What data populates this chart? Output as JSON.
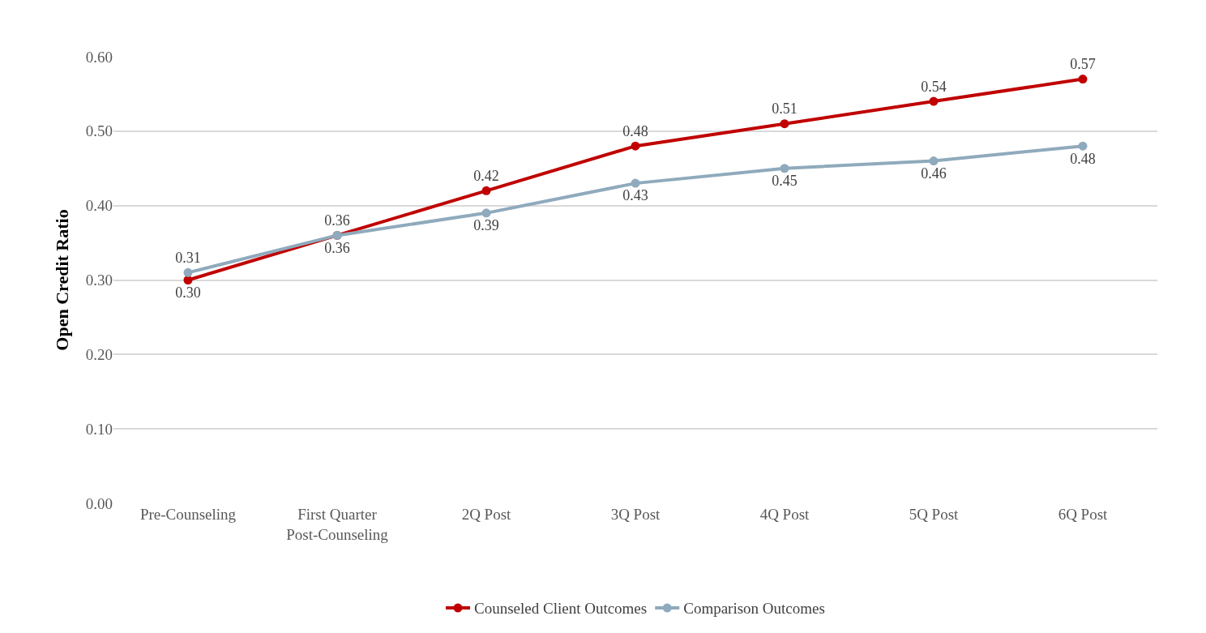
{
  "chart_data": {
    "type": "line",
    "ylabel": "Open Credit Ratio",
    "categories": [
      "Pre-Counseling",
      "First Quarter Post-Counseling",
      "2Q Post",
      "3Q Post",
      "4Q Post",
      "5Q Post",
      "6Q Post"
    ],
    "series": [
      {
        "name": "Counseled Client Outcomes",
        "color": "#c00000",
        "values": [
          0.3,
          0.36,
          0.42,
          0.48,
          0.51,
          0.54,
          0.57
        ],
        "value_labels": [
          "0.30",
          "0.36",
          "0.42",
          "0.48",
          "0.51",
          "0.54",
          "0.57"
        ]
      },
      {
        "name": "Comparison Outcomes",
        "color": "#8faabc",
        "values": [
          0.31,
          0.36,
          0.39,
          0.43,
          0.45,
          0.46,
          0.48
        ],
        "value_labels": [
          "0.31",
          "0.36",
          "0.39",
          "0.43",
          "0.45",
          "0.46",
          "0.48"
        ]
      }
    ],
    "ylim": [
      0,
      0.6
    ],
    "yticks": [
      {
        "value": 0,
        "label": "0.00"
      },
      {
        "value": 0.1,
        "label": "0.10"
      },
      {
        "value": 0.2,
        "label": "0.20"
      },
      {
        "value": 0.3,
        "label": "0.30"
      },
      {
        "value": 0.4,
        "label": "0.40"
      },
      {
        "value": 0.5,
        "label": "0.50"
      },
      {
        "value": 0.6,
        "label": "0.60"
      }
    ],
    "grid": "y",
    "legend": "bottom",
    "marker": "circle",
    "line_style": "solid"
  }
}
